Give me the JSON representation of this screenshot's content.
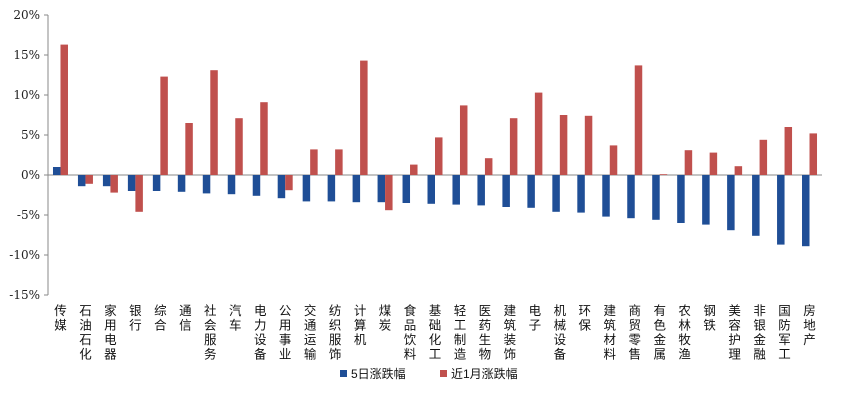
{
  "chart_data": {
    "type": "bar",
    "categories": [
      "传媒",
      "石油石化",
      "家用电器",
      "银行",
      "综合",
      "通信",
      "社会服务",
      "汽车",
      "电力设备",
      "公用事业",
      "交通运输",
      "纺织服饰",
      "计算机",
      "煤炭",
      "食品饮料",
      "基础化工",
      "轻工制造",
      "医药生物",
      "建筑装饰",
      "电子",
      "机械设备",
      "环保",
      "建筑材料",
      "商贸零售",
      "有色金属",
      "农林牧渔",
      "钢铁",
      "美容护理",
      "非银金融",
      "国防军工",
      "房地产"
    ],
    "series": [
      {
        "name": "5日涨跌幅",
        "color": "#1f4e96",
        "values": [
          1.0,
          -1.4,
          -1.4,
          -2.0,
          -2.0,
          -2.1,
          -2.3,
          -2.4,
          -2.6,
          -2.9,
          -3.3,
          -3.3,
          -3.4,
          -3.4,
          -3.5,
          -3.6,
          -3.7,
          -3.8,
          -4.0,
          -4.1,
          -4.6,
          -4.7,
          -5.2,
          -5.4,
          -5.6,
          -6.0,
          -6.2,
          -6.9,
          -7.6,
          -8.7,
          -8.9
        ]
      },
      {
        "name": "近1月涨跌幅",
        "color": "#c0504d",
        "values": [
          16.3,
          -1.1,
          -2.2,
          -4.6,
          12.3,
          6.5,
          13.1,
          7.1,
          9.1,
          -1.9,
          3.2,
          3.2,
          14.3,
          -4.4,
          1.3,
          4.7,
          8.7,
          2.1,
          7.1,
          10.3,
          7.5,
          7.4,
          3.7,
          13.7,
          0.1,
          3.1,
          2.8,
          1.1,
          4.4,
          6.0,
          5.2
        ]
      }
    ],
    "ylim": [
      -15,
      20
    ],
    "yticks": [
      20,
      15,
      10,
      5,
      0,
      -5,
      -10,
      -15
    ],
    "ytick_labels": [
      "20%",
      "15%",
      "10%",
      "5%",
      "0%",
      "-5%",
      "-10%",
      "-15%"
    ],
    "title": "",
    "xlabel": "",
    "ylabel": "",
    "grid": false,
    "legend_position": "bottom-center"
  }
}
